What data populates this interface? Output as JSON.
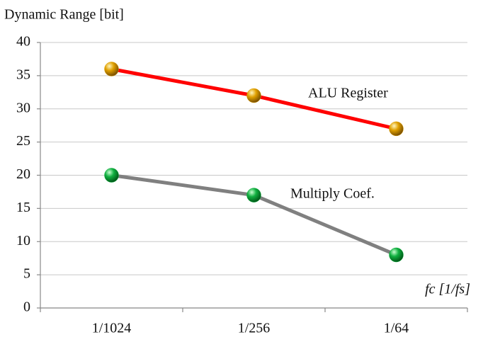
{
  "chart_data": {
    "type": "line",
    "y_axis_label": "Dynamic Range [bit]",
    "x_axis_label": "fc [1/fs]",
    "categories": [
      "1/1024",
      "1/256",
      "1/64"
    ],
    "series": [
      {
        "name": "ALU Register",
        "color": "#ff0000",
        "marker_color": "#e0a000",
        "values": [
          36,
          32,
          27
        ]
      },
      {
        "name": "Multiply Coef.",
        "color": "#808080",
        "marker_color": "#10b040",
        "values": [
          20,
          17,
          8
        ]
      }
    ],
    "ylim": [
      0,
      40
    ],
    "yticks": [
      0,
      5,
      10,
      15,
      20,
      25,
      30,
      35,
      40
    ],
    "grid": true
  }
}
